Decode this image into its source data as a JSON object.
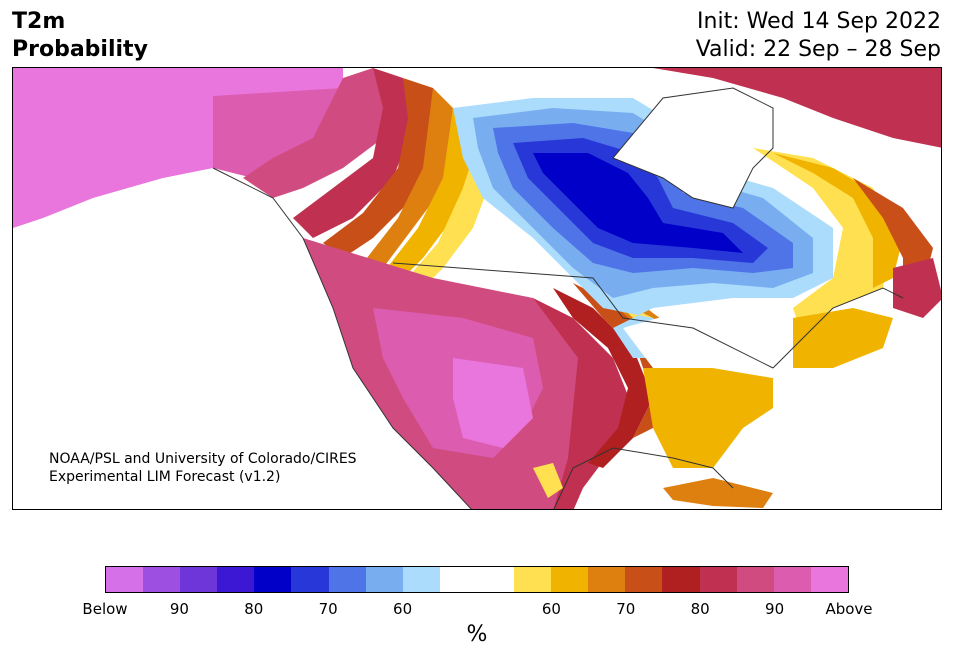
{
  "header": {
    "title_line1": "T2m",
    "title_line2": "Probability",
    "init": "Init: Wed 14 Sep 2022",
    "valid": "Valid: 22 Sep – 28 Sep"
  },
  "credit": {
    "line1": "NOAA/PSL and University of Colorado/CIRES",
    "line2": "Experimental LIM Forecast (v1.2)"
  },
  "colorbar": {
    "colors": [
      "#d670e8",
      "#9c4fe0",
      "#6e35d8",
      "#3c18d4",
      "#0000c8",
      "#2838d8",
      "#4e74e8",
      "#78aef0",
      "#acdcfc",
      "#ffffff",
      "#ffffff",
      "#ffe050",
      "#f0b400",
      "#de8010",
      "#c85018",
      "#b02020",
      "#c03050",
      "#d04c80",
      "#dc5cb0",
      "#e876dc"
    ],
    "labels": [
      "Below",
      "90",
      "80",
      "70",
      "60",
      "60",
      "70",
      "80",
      "90",
      "Above"
    ],
    "units": "%"
  },
  "map": {
    "colors": {
      "above": "#e876dc",
      "p90": "#dc5cb0",
      "p85": "#d04c80",
      "p80": "#c03050",
      "p75": "#b02020",
      "p70": "#c85018",
      "p65": "#de8010",
      "p60": "#f0b400",
      "p55": "#ffe050",
      "neutral": "#ffffff",
      "b55": "#acdcfc",
      "b60": "#78aef0",
      "b65": "#4e74e8",
      "b70": "#2838d8",
      "b75": "#0000c8",
      "border": "#333333"
    }
  }
}
